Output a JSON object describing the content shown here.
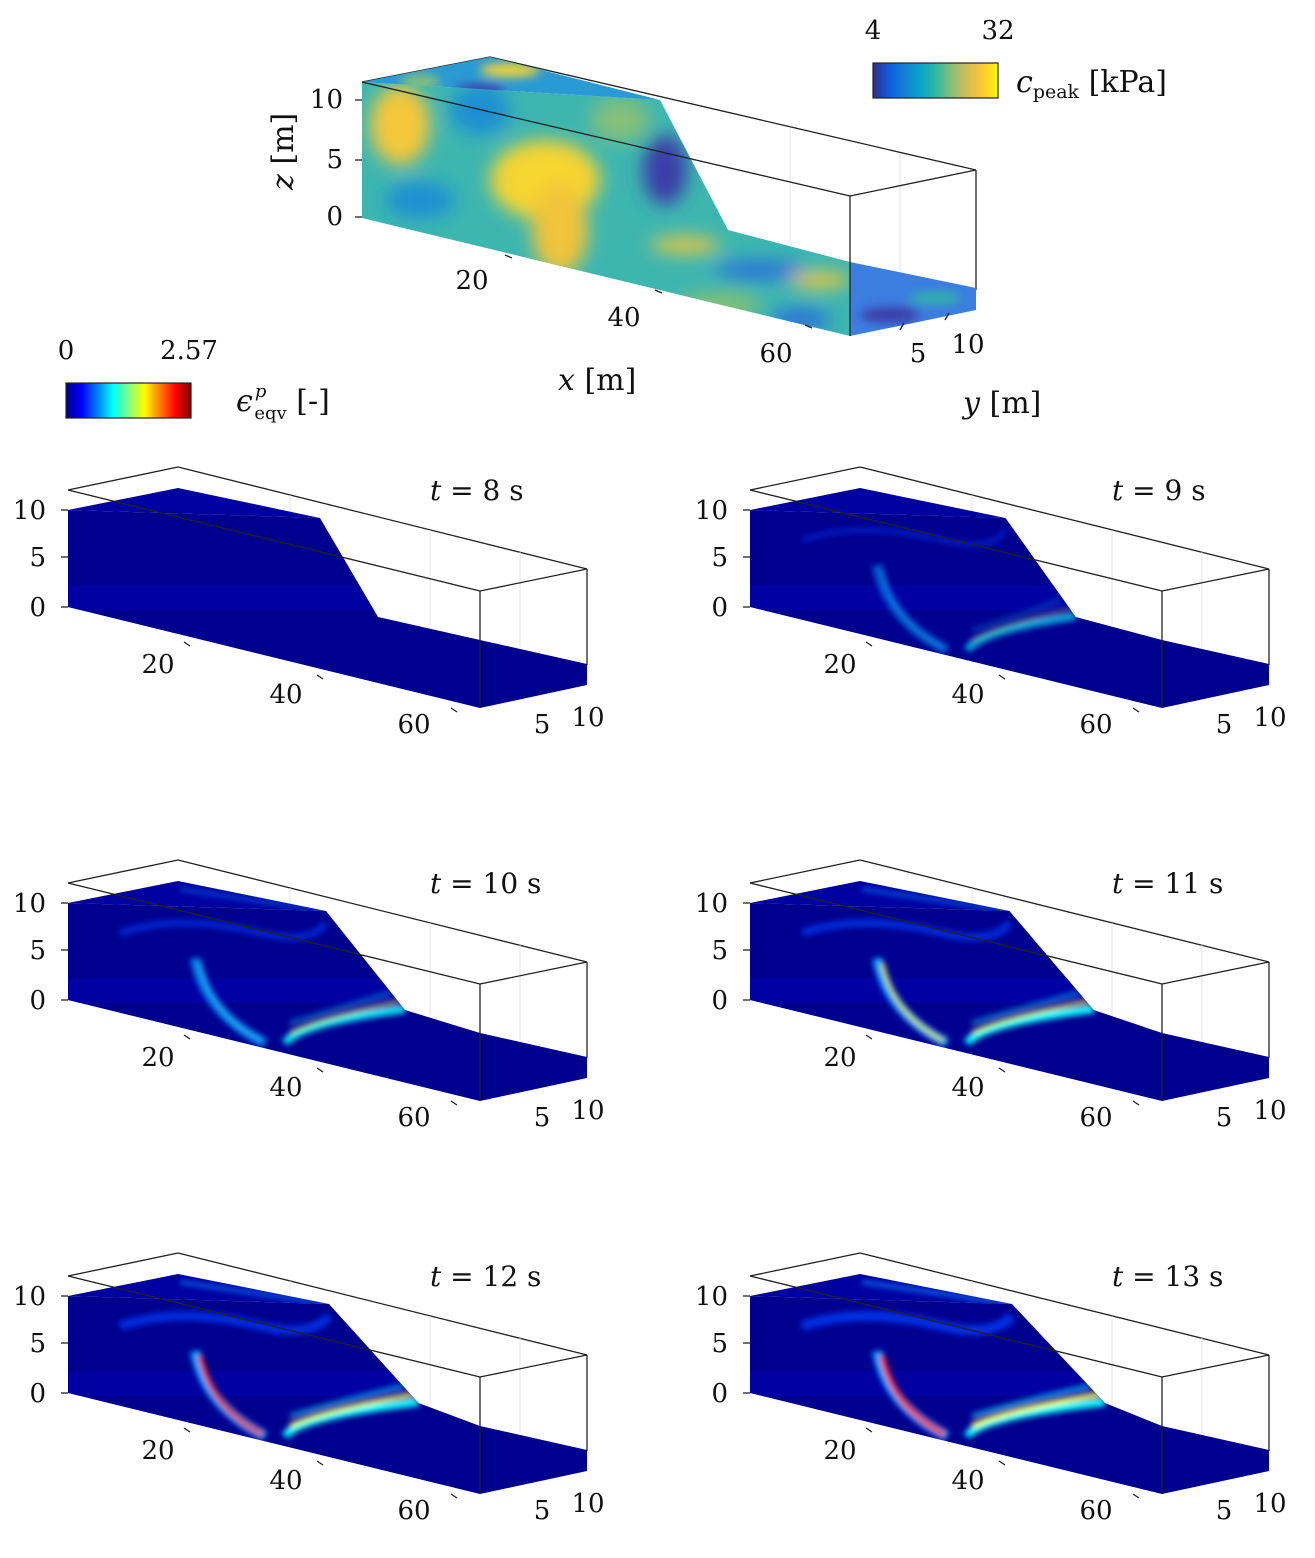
{
  "top_panel": {
    "colorbar": {
      "min": "4",
      "max": "32",
      "label_main": "c",
      "label_sub": "peak",
      "unit": "[kPa]",
      "colormap": "parula",
      "colors": [
        "#352a87",
        "#0f5cdd",
        "#1481d6",
        "#06a4ca",
        "#2eb7a4",
        "#87bf77",
        "#d1bb59",
        "#fec832",
        "#f9fb0e"
      ]
    },
    "x_ticks": [
      "20",
      "40",
      "60"
    ],
    "y_ticks": [
      "5",
      "10"
    ],
    "z_ticks": [
      "0",
      "5",
      "10"
    ],
    "x_label": "x",
    "x_unit": "[m]",
    "y_label": "y",
    "y_unit": "[m]",
    "z_label": "z",
    "z_unit": "[m]"
  },
  "strain_colorbar": {
    "min": "0",
    "max": "2.57",
    "label_main": "ϵ",
    "label_sup": "p",
    "label_sub": "eqv",
    "unit": "[-]",
    "colormap": "jet",
    "colors": [
      "#00008f",
      "#0000ff",
      "#0080ff",
      "#00ffff",
      "#80ff80",
      "#ffff00",
      "#ff8000",
      "#ff0000",
      "#800000"
    ]
  },
  "snapshots": [
    {
      "time_label": "t = 8 s",
      "x_ticks": [
        "20",
        "40",
        "60"
      ],
      "y_ticks": [
        "5",
        "10"
      ],
      "z_ticks": [
        "0",
        "5",
        "10"
      ],
      "shear_intensity": 0.0
    },
    {
      "time_label": "t = 9 s",
      "x_ticks": [
        "20",
        "40",
        "60"
      ],
      "y_ticks": [
        "5",
        "10"
      ],
      "z_ticks": [
        "0",
        "5",
        "10"
      ],
      "shear_intensity": 0.35
    },
    {
      "time_label": "t = 10 s",
      "x_ticks": [
        "20",
        "40",
        "60"
      ],
      "y_ticks": [
        "5",
        "10"
      ],
      "z_ticks": [
        "0",
        "5",
        "10"
      ],
      "shear_intensity": 0.6
    },
    {
      "time_label": "t = 11 s",
      "x_ticks": [
        "20",
        "40",
        "60"
      ],
      "y_ticks": [
        "5",
        "10"
      ],
      "z_ticks": [
        "0",
        "5",
        "10"
      ],
      "shear_intensity": 0.75
    },
    {
      "time_label": "t = 12 s",
      "x_ticks": [
        "20",
        "40",
        "60"
      ],
      "y_ticks": [
        "5",
        "10"
      ],
      "z_ticks": [
        "0",
        "5",
        "10"
      ],
      "shear_intensity": 0.9
    },
    {
      "time_label": "t = 13 s",
      "x_ticks": [
        "20",
        "40",
        "60"
      ],
      "y_ticks": [
        "5",
        "10"
      ],
      "z_ticks": [
        "0",
        "5",
        "10"
      ],
      "shear_intensity": 1.0
    }
  ],
  "chart_data": {
    "type": "3d-field",
    "top": {
      "field": "c_peak",
      "unit": "kPa",
      "clim": [
        4,
        32
      ],
      "xlim": [
        0,
        65
      ],
      "ylim": [
        0,
        12
      ],
      "zlim": [
        0,
        12
      ]
    },
    "snapshots": {
      "field": "plastic equivalent strain",
      "clim": [
        0,
        2.57
      ],
      "times_s": [
        8,
        9,
        10,
        11,
        12,
        13
      ]
    }
  }
}
